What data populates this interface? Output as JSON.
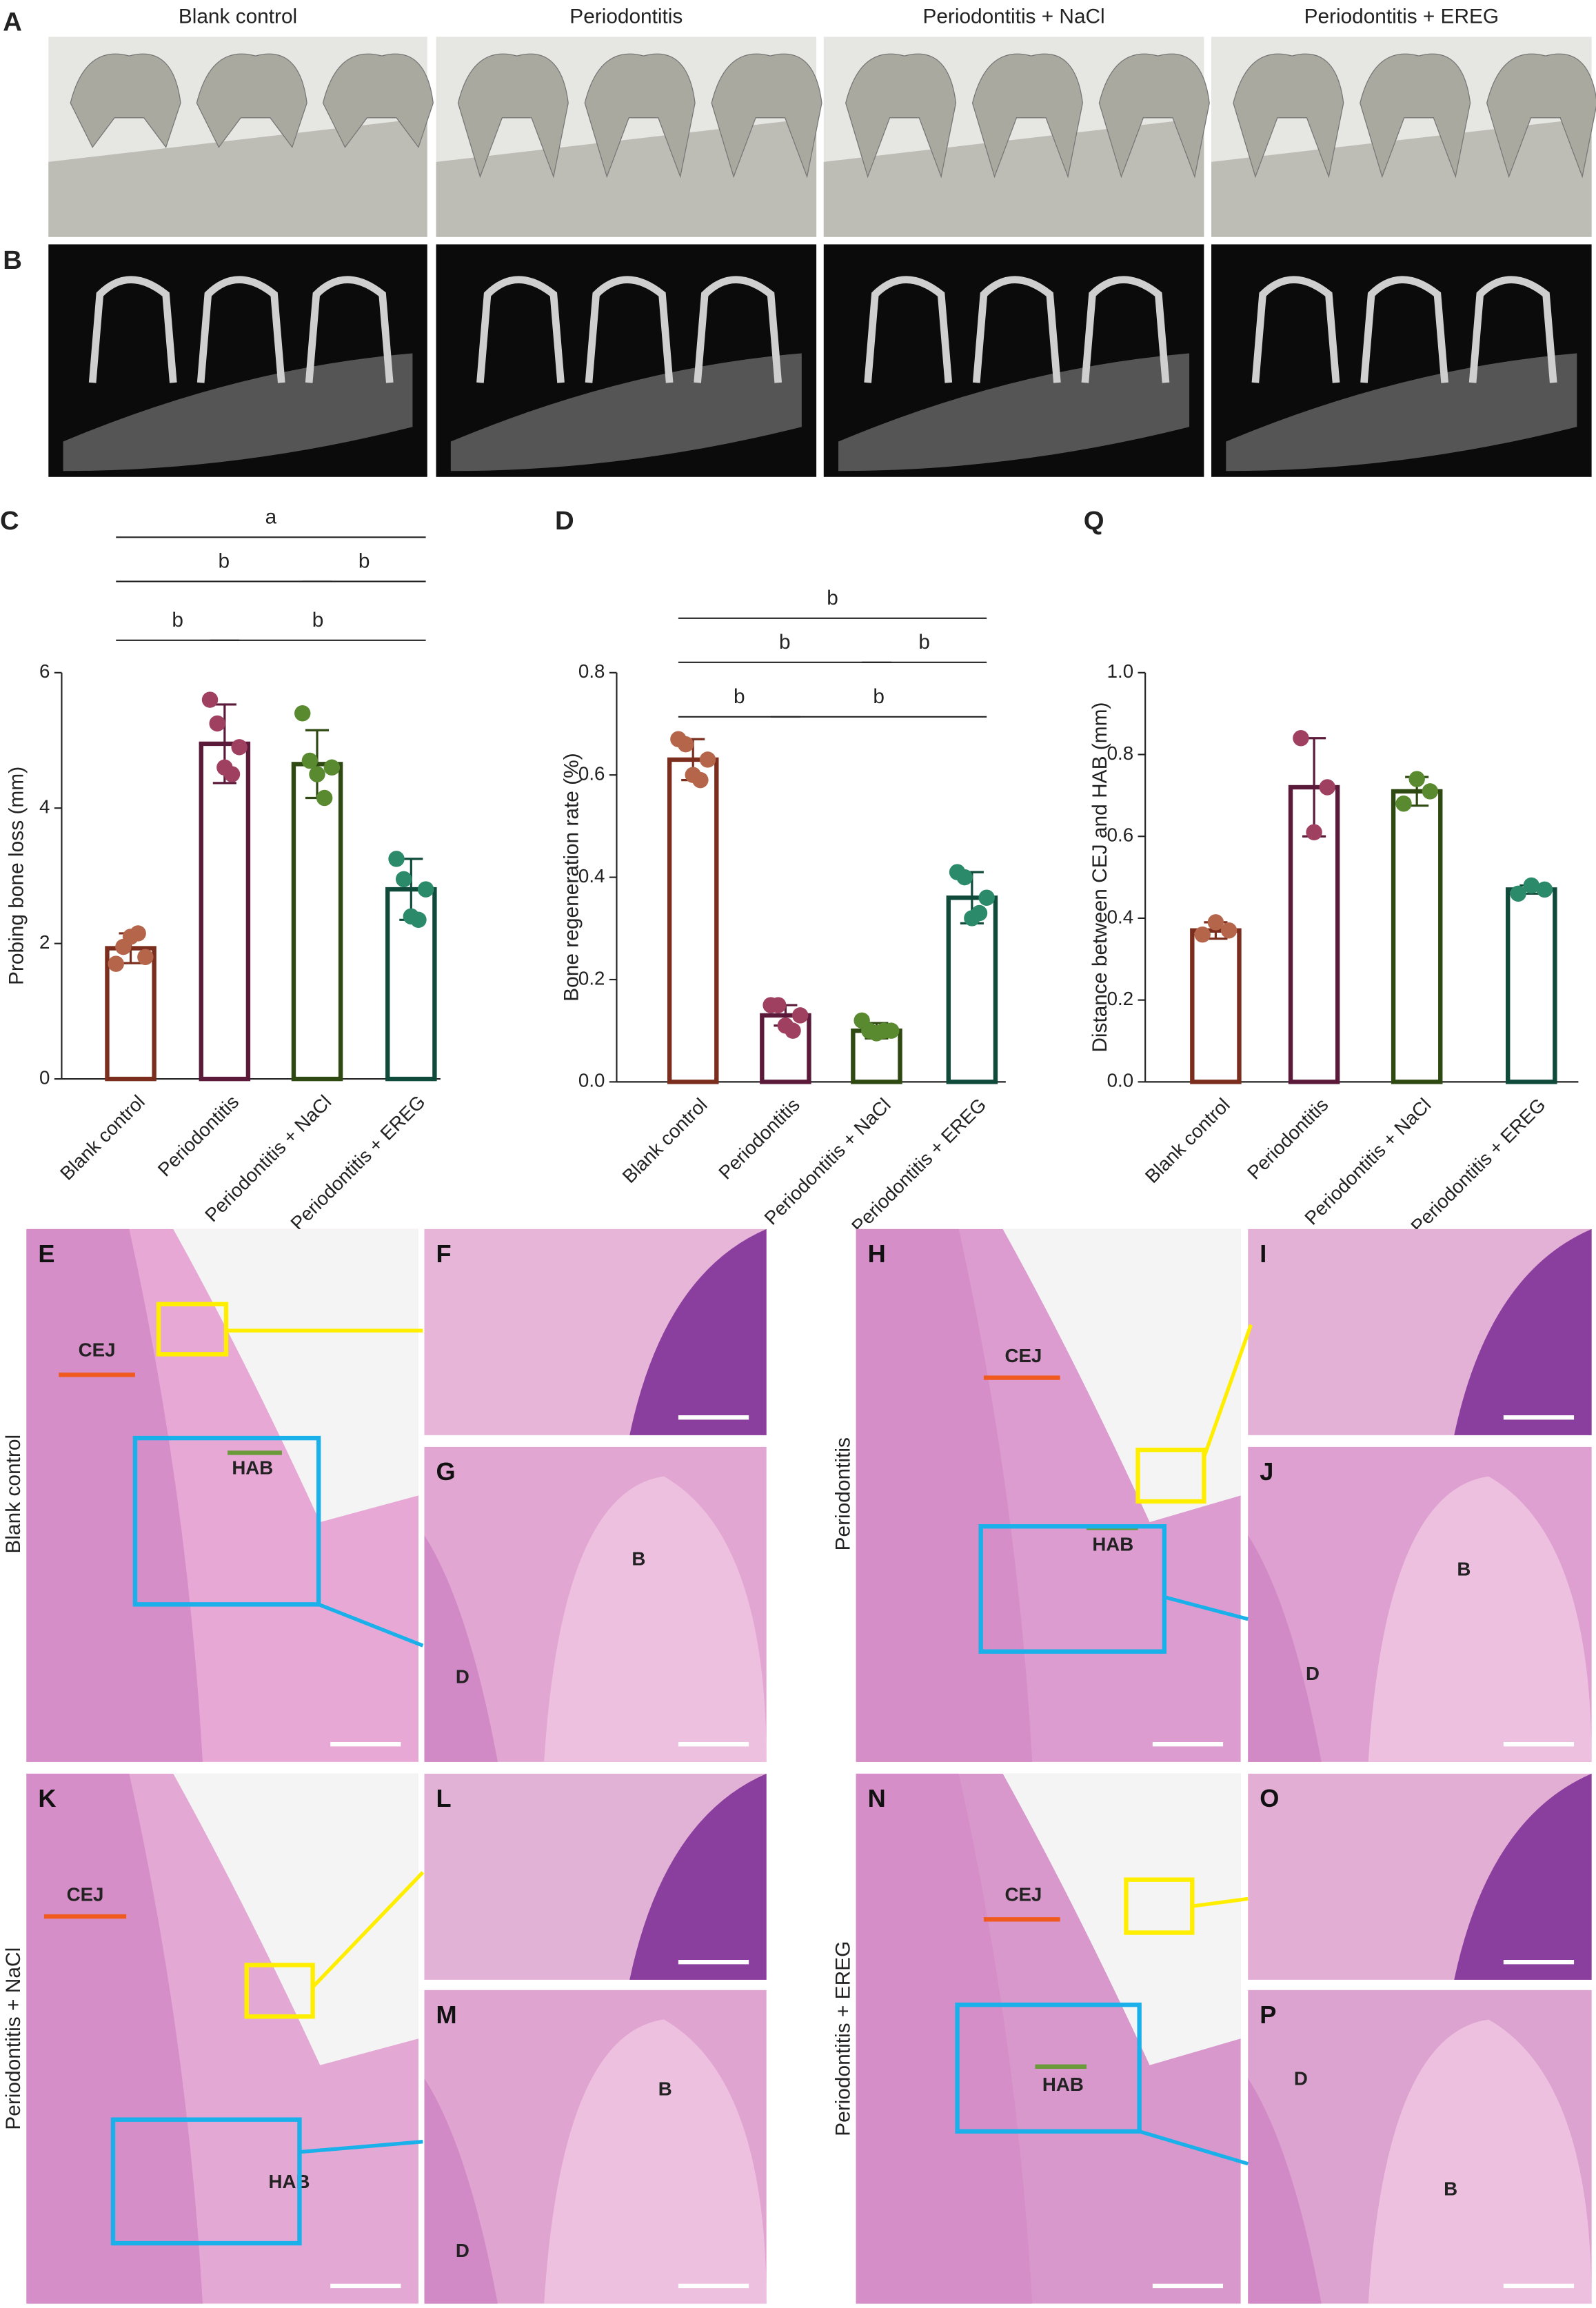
{
  "panels": {
    "column_titles": [
      "Blank control",
      "Periodontitis",
      "Periodontitis + NaCl",
      "Periodontitis + EREG"
    ],
    "row_letters": [
      "A",
      "B"
    ],
    "histology_letters": [
      "E",
      "F",
      "G",
      "H",
      "I",
      "J",
      "K",
      "L",
      "M",
      "N",
      "O",
      "P"
    ],
    "side_labels": [
      "Blank control",
      "Periodontitis",
      "Periodontitis + NaCl",
      "Periodontitis + EREG"
    ],
    "marks": {
      "cej": "CEJ",
      "hab": "HAB",
      "bone": "B",
      "dentin": "D"
    }
  },
  "chart_data": [
    {
      "type": "bar",
      "panel": "C",
      "y_label": "Probing bone loss (mm)",
      "categories": [
        "Blank control",
        "Periodontitis",
        "Periodontitis + NaCl",
        "Periodontitis + EREG"
      ],
      "values": [
        1.93,
        4.95,
        4.65,
        2.8
      ],
      "errors": [
        0.22,
        0.58,
        0.5,
        0.45
      ],
      "points": [
        [
          1.7,
          1.95,
          2.1,
          2.15,
          1.8
        ],
        [
          5.6,
          5.25,
          4.6,
          4.5,
          4.9
        ],
        [
          5.4,
          4.7,
          4.5,
          4.15,
          4.6
        ],
        [
          3.25,
          2.95,
          2.4,
          2.35,
          2.8
        ]
      ],
      "colors": [
        "#7b2e1e",
        "#5c1a3a",
        "#2e4a12",
        "#0f4a3a"
      ],
      "point_colors": [
        "#b5654a",
        "#a04060",
        "#5a8a30",
        "#2a8a6a"
      ],
      "ylim": [
        0,
        6
      ],
      "yticks": [
        0,
        2,
        4,
        6
      ],
      "annotations": [
        "a",
        "b",
        "b",
        "b",
        "b"
      ]
    },
    {
      "type": "bar",
      "panel": "D",
      "y_label": "Bone regeneration rate (%)",
      "categories": [
        "Blank control",
        "Periodontitis",
        "Periodontitis + NaCl",
        "Periodontitis + EREG"
      ],
      "values": [
        0.63,
        0.13,
        0.1,
        0.36
      ],
      "errors": [
        0.04,
        0.02,
        0.015,
        0.05
      ],
      "points": [
        [
          0.67,
          0.66,
          0.6,
          0.59,
          0.63
        ],
        [
          0.15,
          0.15,
          0.11,
          0.1,
          0.13
        ],
        [
          0.12,
          0.1,
          0.095,
          0.1,
          0.1
        ],
        [
          0.41,
          0.4,
          0.32,
          0.33,
          0.36
        ]
      ],
      "colors": [
        "#7b2e1e",
        "#5c1a3a",
        "#2e4a12",
        "#0f4a3a"
      ],
      "point_colors": [
        "#b5654a",
        "#a04060",
        "#5a8a30",
        "#2a8a6a"
      ],
      "ylim": [
        0,
        0.8
      ],
      "yticks": [
        {
          "value": 0,
          "label": "0.0"
        },
        0.2,
        0.4,
        0.6,
        0.8
      ],
      "annotations": [
        "b",
        "b",
        "b",
        "b",
        "b"
      ]
    },
    {
      "type": "bar",
      "panel": "Q",
      "y_label": "Distance between CEJ and HAB (mm)",
      "categories": [
        "Blank control",
        "Periodontitis",
        "Periodontitis + NaCl",
        "Periodontitis + EREG"
      ],
      "values": [
        0.37,
        0.72,
        0.71,
        0.47
      ],
      "errors": [
        0.02,
        0.12,
        0.035,
        0.01
      ],
      "points": [
        [
          0.36,
          0.39,
          0.37
        ],
        [
          0.84,
          0.61,
          0.72
        ],
        [
          0.68,
          0.74,
          0.71
        ],
        [
          0.46,
          0.48,
          0.47
        ]
      ],
      "colors": [
        "#7b2e1e",
        "#5c1a3a",
        "#2e4a12",
        "#0f4a3a"
      ],
      "point_colors": [
        "#b5654a",
        "#a04060",
        "#5a8a30",
        "#2a8a6a"
      ],
      "ylim": [
        0,
        1
      ],
      "yticks": [
        {
          "value": 0,
          "label": "0.0"
        },
        0.2,
        0.4,
        0.6,
        0.8,
        {
          "value": 1,
          "label": "1.0"
        }
      ],
      "annotations": []
    }
  ]
}
